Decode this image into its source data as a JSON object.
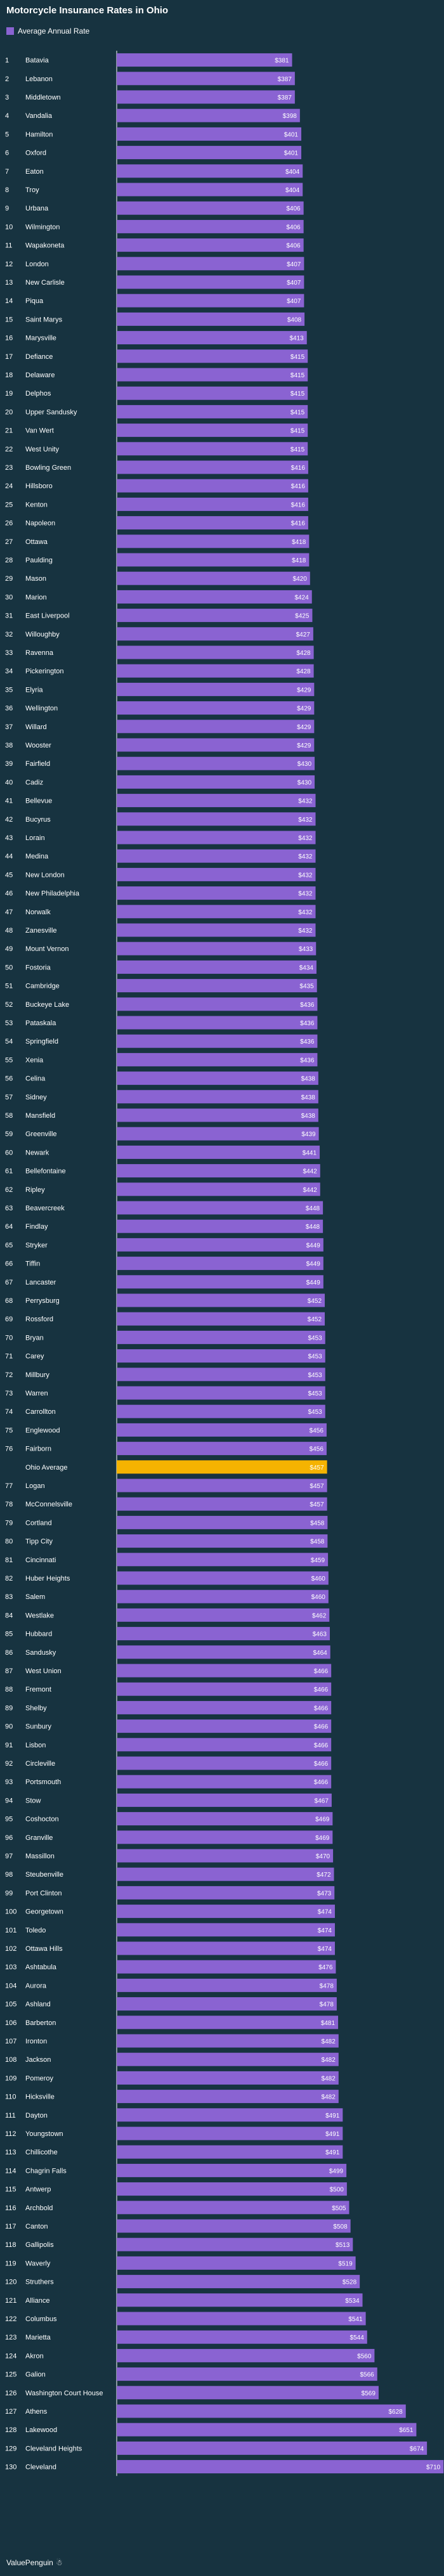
{
  "title": "Motorcycle Insurance Rates in Ohio",
  "legend": {
    "label": "Average Annual Rate",
    "color": "#8a63d2"
  },
  "highlight_color": "#f5b301",
  "footer": {
    "brand": "ValuePenguin"
  },
  "chart_data": {
    "type": "bar",
    "orientation": "horizontal",
    "title": "Motorcycle Insurance Rates in Ohio",
    "xlabel": "",
    "ylabel": "",
    "series": [
      {
        "name": "Average Annual Rate"
      }
    ],
    "xlim": [
      0,
      700
    ],
    "grid": false,
    "legend_position": "top-left",
    "rows": [
      {
        "rank": "1",
        "city": "Batavia",
        "value": 381
      },
      {
        "rank": "2",
        "city": "Lebanon",
        "value": 387
      },
      {
        "rank": "3",
        "city": "Middletown",
        "value": 387
      },
      {
        "rank": "4",
        "city": "Vandalia",
        "value": 398
      },
      {
        "rank": "5",
        "city": "Hamilton",
        "value": 401
      },
      {
        "rank": "6",
        "city": "Oxford",
        "value": 401
      },
      {
        "rank": "7",
        "city": "Eaton",
        "value": 404
      },
      {
        "rank": "8",
        "city": "Troy",
        "value": 404
      },
      {
        "rank": "9",
        "city": "Urbana",
        "value": 406
      },
      {
        "rank": "10",
        "city": "Wilmington",
        "value": 406
      },
      {
        "rank": "11",
        "city": "Wapakoneta",
        "value": 406
      },
      {
        "rank": "12",
        "city": "London",
        "value": 407
      },
      {
        "rank": "13",
        "city": "New Carlisle",
        "value": 407
      },
      {
        "rank": "14",
        "city": "Piqua",
        "value": 407
      },
      {
        "rank": "15",
        "city": "Saint Marys",
        "value": 408
      },
      {
        "rank": "16",
        "city": "Marysville",
        "value": 413
      },
      {
        "rank": "17",
        "city": "Defiance",
        "value": 415
      },
      {
        "rank": "18",
        "city": "Delaware",
        "value": 415
      },
      {
        "rank": "19",
        "city": "Delphos",
        "value": 415
      },
      {
        "rank": "20",
        "city": "Upper Sandusky",
        "value": 415
      },
      {
        "rank": "21",
        "city": "Van Wert",
        "value": 415
      },
      {
        "rank": "22",
        "city": "West Unity",
        "value": 415
      },
      {
        "rank": "23",
        "city": "Bowling Green",
        "value": 416
      },
      {
        "rank": "24",
        "city": "Hillsboro",
        "value": 416
      },
      {
        "rank": "25",
        "city": "Kenton",
        "value": 416
      },
      {
        "rank": "26",
        "city": "Napoleon",
        "value": 416
      },
      {
        "rank": "27",
        "city": "Ottawa",
        "value": 418
      },
      {
        "rank": "28",
        "city": "Paulding",
        "value": 418
      },
      {
        "rank": "29",
        "city": "Mason",
        "value": 420
      },
      {
        "rank": "30",
        "city": "Marion",
        "value": 424
      },
      {
        "rank": "31",
        "city": "East Liverpool",
        "value": 425
      },
      {
        "rank": "32",
        "city": "Willoughby",
        "value": 427
      },
      {
        "rank": "33",
        "city": "Ravenna",
        "value": 428
      },
      {
        "rank": "34",
        "city": "Pickerington",
        "value": 428
      },
      {
        "rank": "35",
        "city": "Elyria",
        "value": 429
      },
      {
        "rank": "36",
        "city": "Wellington",
        "value": 429
      },
      {
        "rank": "37",
        "city": "Willard",
        "value": 429
      },
      {
        "rank": "38",
        "city": "Wooster",
        "value": 429
      },
      {
        "rank": "39",
        "city": "Fairfield",
        "value": 430
      },
      {
        "rank": "40",
        "city": "Cadiz",
        "value": 430
      },
      {
        "rank": "41",
        "city": "Bellevue",
        "value": 432
      },
      {
        "rank": "42",
        "city": "Bucyrus",
        "value": 432
      },
      {
        "rank": "43",
        "city": "Lorain",
        "value": 432
      },
      {
        "rank": "44",
        "city": "Medina",
        "value": 432
      },
      {
        "rank": "45",
        "city": "New London",
        "value": 432
      },
      {
        "rank": "46",
        "city": "New Philadelphia",
        "value": 432
      },
      {
        "rank": "47",
        "city": "Norwalk",
        "value": 432
      },
      {
        "rank": "48",
        "city": "Zanesville",
        "value": 432
      },
      {
        "rank": "49",
        "city": "Mount Vernon",
        "value": 433
      },
      {
        "rank": "50",
        "city": "Fostoria",
        "value": 434
      },
      {
        "rank": "51",
        "city": "Cambridge",
        "value": 435
      },
      {
        "rank": "52",
        "city": "Buckeye Lake",
        "value": 436
      },
      {
        "rank": "53",
        "city": "Pataskala",
        "value": 436
      },
      {
        "rank": "54",
        "city": "Springfield",
        "value": 436
      },
      {
        "rank": "55",
        "city": "Xenia",
        "value": 436
      },
      {
        "rank": "56",
        "city": "Celina",
        "value": 438
      },
      {
        "rank": "57",
        "city": "Sidney",
        "value": 438
      },
      {
        "rank": "58",
        "city": "Mansfield",
        "value": 438
      },
      {
        "rank": "59",
        "city": "Greenville",
        "value": 439
      },
      {
        "rank": "60",
        "city": "Newark",
        "value": 441
      },
      {
        "rank": "61",
        "city": "Bellefontaine",
        "value": 442
      },
      {
        "rank": "62",
        "city": "Ripley",
        "value": 442
      },
      {
        "rank": "63",
        "city": "Beavercreek",
        "value": 448
      },
      {
        "rank": "64",
        "city": "Findlay",
        "value": 448
      },
      {
        "rank": "65",
        "city": "Stryker",
        "value": 449
      },
      {
        "rank": "66",
        "city": "Tiffin",
        "value": 449
      },
      {
        "rank": "67",
        "city": "Lancaster",
        "value": 449
      },
      {
        "rank": "68",
        "city": "Perrysburg",
        "value": 452
      },
      {
        "rank": "69",
        "city": "Rossford",
        "value": 452
      },
      {
        "rank": "70",
        "city": "Bryan",
        "value": 453
      },
      {
        "rank": "71",
        "city": "Carey",
        "value": 453
      },
      {
        "rank": "72",
        "city": "Millbury",
        "value": 453
      },
      {
        "rank": "73",
        "city": "Warren",
        "value": 453
      },
      {
        "rank": "74",
        "city": "Carrollton",
        "value": 453
      },
      {
        "rank": "75",
        "city": "Englewood",
        "value": 456
      },
      {
        "rank": "76",
        "city": "Fairborn",
        "value": 456
      },
      {
        "rank": "",
        "city": "Ohio Average",
        "value": 457,
        "highlight": true
      },
      {
        "rank": "77",
        "city": "Logan",
        "value": 457
      },
      {
        "rank": "78",
        "city": "McConnelsville",
        "value": 457
      },
      {
        "rank": "79",
        "city": "Cortland",
        "value": 458
      },
      {
        "rank": "80",
        "city": "Tipp City",
        "value": 458
      },
      {
        "rank": "81",
        "city": "Cincinnati",
        "value": 459
      },
      {
        "rank": "82",
        "city": "Huber Heights",
        "value": 460
      },
      {
        "rank": "83",
        "city": "Salem",
        "value": 460
      },
      {
        "rank": "84",
        "city": "Westlake",
        "value": 462
      },
      {
        "rank": "85",
        "city": "Hubbard",
        "value": 463
      },
      {
        "rank": "86",
        "city": "Sandusky",
        "value": 464
      },
      {
        "rank": "87",
        "city": "West Union",
        "value": 466
      },
      {
        "rank": "88",
        "city": "Fremont",
        "value": 466
      },
      {
        "rank": "89",
        "city": "Shelby",
        "value": 466
      },
      {
        "rank": "90",
        "city": "Sunbury",
        "value": 466
      },
      {
        "rank": "91",
        "city": "Lisbon",
        "value": 466
      },
      {
        "rank": "92",
        "city": "Circleville",
        "value": 466
      },
      {
        "rank": "93",
        "city": "Portsmouth",
        "value": 466
      },
      {
        "rank": "94",
        "city": "Stow",
        "value": 467
      },
      {
        "rank": "95",
        "city": "Coshocton",
        "value": 469
      },
      {
        "rank": "96",
        "city": "Granville",
        "value": 469
      },
      {
        "rank": "97",
        "city": "Massillon",
        "value": 470
      },
      {
        "rank": "98",
        "city": "Steubenville",
        "value": 472
      },
      {
        "rank": "99",
        "city": "Port Clinton",
        "value": 473
      },
      {
        "rank": "100",
        "city": "Georgetown",
        "value": 474
      },
      {
        "rank": "101",
        "city": "Toledo",
        "value": 474
      },
      {
        "rank": "102",
        "city": "Ottawa Hills",
        "value": 474
      },
      {
        "rank": "103",
        "city": "Ashtabula",
        "value": 476
      },
      {
        "rank": "104",
        "city": "Aurora",
        "value": 478
      },
      {
        "rank": "105",
        "city": "Ashland",
        "value": 478
      },
      {
        "rank": "106",
        "city": "Barberton",
        "value": 481
      },
      {
        "rank": "107",
        "city": "Ironton",
        "value": 482
      },
      {
        "rank": "108",
        "city": "Jackson",
        "value": 482
      },
      {
        "rank": "109",
        "city": "Pomeroy",
        "value": 482
      },
      {
        "rank": "110",
        "city": "Hicksville",
        "value": 482
      },
      {
        "rank": "111",
        "city": "Dayton",
        "value": 491
      },
      {
        "rank": "112",
        "city": "Youngstown",
        "value": 491
      },
      {
        "rank": "113",
        "city": "Chillicothe",
        "value": 491
      },
      {
        "rank": "114",
        "city": "Chagrin Falls",
        "value": 499
      },
      {
        "rank": "115",
        "city": "Antwerp",
        "value": 500
      },
      {
        "rank": "116",
        "city": "Archbold",
        "value": 505
      },
      {
        "rank": "117",
        "city": "Canton",
        "value": 508
      },
      {
        "rank": "118",
        "city": "Gallipolis",
        "value": 513
      },
      {
        "rank": "119",
        "city": "Waverly",
        "value": 519
      },
      {
        "rank": "120",
        "city": "Struthers",
        "value": 528
      },
      {
        "rank": "121",
        "city": "Alliance",
        "value": 534
      },
      {
        "rank": "122",
        "city": "Columbus",
        "value": 541
      },
      {
        "rank": "123",
        "city": "Marietta",
        "value": 544
      },
      {
        "rank": "124",
        "city": "Akron",
        "value": 560
      },
      {
        "rank": "125",
        "city": "Galion",
        "value": 566
      },
      {
        "rank": "126",
        "city": "Washington Court House",
        "value": 569
      },
      {
        "rank": "127",
        "city": "Athens",
        "value": 628
      },
      {
        "rank": "128",
        "city": "Lakewood",
        "value": 651
      },
      {
        "rank": "129",
        "city": "Cleveland Heights",
        "value": 674
      },
      {
        "rank": "130",
        "city": "Cleveland",
        "value": 710
      }
    ]
  }
}
